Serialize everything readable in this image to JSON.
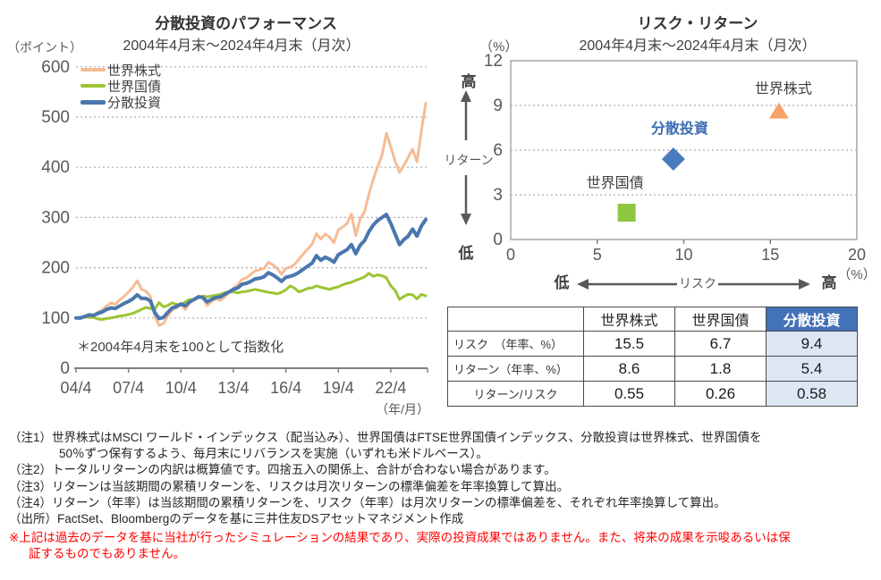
{
  "chart_data": [
    {
      "type": "line",
      "title": "分散投資のパフォーマンス",
      "subtitle": "2004年4月末～2024年4月末（月次）",
      "y_axis_unit": "（ポイント）",
      "x_axis_unit": "（年/月）",
      "footnote": "＊2004年4月末を100として指数化",
      "ylim": [
        0,
        600
      ],
      "y_ticks": [
        0,
        100,
        200,
        300,
        400,
        500,
        600
      ],
      "x_tick_labels": [
        "04/4",
        "07/4",
        "10/4",
        "13/4",
        "16/4",
        "19/4",
        "22/4"
      ],
      "x_start": "2004/4",
      "x_end": "2024/4",
      "sampling": "quarterly",
      "grid": "horizontal-dotted",
      "legend_position": "top-left-inside",
      "series": [
        {
          "name": "世界株式",
          "color": "#F6BC94",
          "width": 3,
          "values": [
            100,
            99,
            103,
            107,
            105,
            111,
            116,
            124,
            130,
            127,
            136,
            143,
            152,
            161,
            174,
            157,
            153,
            143,
            104,
            85,
            89,
            104,
            116,
            120,
            127,
            117,
            130,
            137,
            144,
            141,
            125,
            133,
            138,
            135,
            142,
            151,
            159,
            166,
            177,
            180,
            187,
            194,
            196,
            199,
            211,
            206,
            199,
            187,
            199,
            201,
            207,
            217,
            227,
            237,
            247,
            268,
            257,
            267,
            261,
            250,
            276,
            281,
            288,
            307,
            264,
            297,
            312,
            347,
            376,
            401,
            424,
            468,
            441,
            412,
            390,
            404,
            420,
            436,
            411,
            472,
            528
          ]
        },
        {
          "name": "世界国債",
          "color": "#9CC433",
          "width": 3,
          "values": [
            100,
            100,
            102,
            101,
            101,
            98,
            97,
            99,
            100,
            102,
            104,
            105,
            107,
            109,
            113,
            117,
            121,
            119,
            117,
            131,
            122,
            125,
            130,
            127,
            126,
            132,
            137,
            136,
            140,
            144,
            142,
            144,
            145,
            147,
            150,
            152,
            152,
            150,
            152,
            153,
            155,
            157,
            155,
            153,
            151,
            150,
            148,
            151,
            156,
            164,
            159,
            152,
            155,
            159,
            160,
            164,
            161,
            159,
            157,
            160,
            162,
            166,
            169,
            171,
            175,
            178,
            182,
            189,
            183,
            186,
            184,
            180,
            164,
            155,
            137,
            143,
            147,
            146,
            138,
            147,
            144
          ]
        },
        {
          "name": "分散投資",
          "color": "#4A77AE",
          "width": 4,
          "values": [
            100,
            100,
            103,
            106,
            105,
            109,
            112,
            117,
            120,
            119,
            124,
            129,
            133,
            138,
            146,
            139,
            139,
            134,
            111,
            99,
            101,
            111,
            120,
            123,
            128,
            124,
            132,
            137,
            142,
            141,
            132,
            137,
            141,
            142,
            147,
            152,
            157,
            160,
            167,
            169,
            173,
            178,
            179,
            182,
            190,
            186,
            180,
            173,
            181,
            183,
            186,
            191,
            197,
            203,
            209,
            224,
            215,
            221,
            217,
            211,
            226,
            231,
            236,
            246,
            228,
            245,
            254,
            272,
            285,
            294,
            300,
            306,
            288,
            267,
            246,
            256,
            263,
            277,
            263,
            283,
            296
          ]
        }
      ]
    },
    {
      "type": "scatter",
      "title": "リスク・リターン",
      "subtitle": "2004年4月末～2024年4月末（月次）",
      "x_axis": {
        "title": "リスク",
        "low_label": "低",
        "high_label": "高",
        "unit": "（%）",
        "ticks": [
          0,
          5,
          10,
          15,
          20
        ],
        "range": [
          0,
          20
        ]
      },
      "y_axis": {
        "title": "リターン",
        "low_label": "低",
        "high_label": "高",
        "unit": "（%）",
        "ticks": [
          0,
          3,
          6,
          9,
          12
        ],
        "range": [
          0,
          12
        ]
      },
      "grid": "horizontal-dotted",
      "points": [
        {
          "name": "世界株式",
          "risk": 15.5,
          "return": 8.6,
          "marker": "triangle",
          "color": "#F7A267",
          "label_color": "#404040",
          "label_bold": false
        },
        {
          "name": "分散投資",
          "risk": 9.4,
          "return": 5.4,
          "marker": "diamond",
          "color": "#4A7BBC",
          "label_color": "#3A6BB0",
          "label_bold": true
        },
        {
          "name": "世界国債",
          "risk": 6.7,
          "return": 1.8,
          "marker": "square",
          "color": "#8EC63F",
          "label_color": "#404040",
          "label_bold": false
        }
      ]
    }
  ],
  "table": {
    "columns": [
      "",
      "世界株式",
      "世界国債",
      "分散投資"
    ],
    "rows": [
      {
        "label": "リスク　（年率、%）",
        "values": [
          "15.5",
          "6.7",
          "9.4"
        ]
      },
      {
        "label": "リターン（年率、%）",
        "values": [
          "8.6",
          "1.8",
          "5.4"
        ]
      },
      {
        "label": "リターン/リスク",
        "values": [
          "0.55",
          "0.26",
          "0.58"
        ]
      }
    ],
    "highlight_column": "分散投資",
    "header_bg": "#4472B8",
    "highlight_bg": "#DCE7F3"
  },
  "notes": {
    "lines": [
      {
        "text": "（注1）世界株式はMSCI ワールド・インデックス（配当込み）、世界国債はFTSE世界国債インデックス、分散投資は世界株式、世界国債を"
      },
      {
        "text": "50％ずつ保有するよう、毎月末にリバランスを実施（いずれも米ドルベース）。"
      },
      {
        "text": "（注2）トータルリターンの内訳は概算値です。四捨五入の関係上、合計が合わない場合があります。"
      },
      {
        "text": "（注3）リターンは当該期間の累積リターンを、リスクは月次リターンの標準偏差を年率換算して算出。"
      },
      {
        "text": "（注4）リターン（年率）は当該期間の累積リターンを、リスク（年率）は月次リターンの標準偏差を、それぞれ年率換算して算出。"
      },
      {
        "text": "（出所）FactSet、Bloombergのデータを基に三井住友DSアセットマネジメント作成"
      },
      {
        "text": "※上記は過去のデータを基に当社が行ったシミュレーションの結果であり、実際の投資成果ではありません。また、将来の成果を示唆あるいは保"
      },
      {
        "text": "証するものでもありません。"
      }
    ]
  }
}
